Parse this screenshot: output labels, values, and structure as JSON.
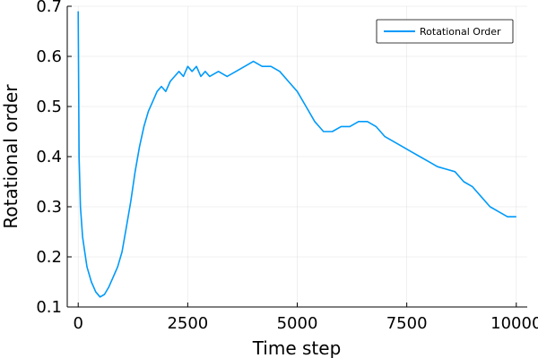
{
  "chart_data": {
    "type": "line",
    "title": "",
    "xlabel": "Time step",
    "ylabel": "Rotational order",
    "xlim": [
      -250,
      10250
    ],
    "ylim": [
      0.1,
      0.7
    ],
    "x_ticks": [
      0,
      2500,
      5000,
      7500,
      10000
    ],
    "x_tick_labels": [
      "0",
      "2500",
      "5000",
      "7500",
      "10000"
    ],
    "y_ticks": [
      0.1,
      0.2,
      0.3,
      0.4,
      0.5,
      0.6,
      0.7
    ],
    "y_tick_labels": [
      "0.1",
      "0.2",
      "0.3",
      "0.4",
      "0.5",
      "0.6",
      "0.7"
    ],
    "grid": true,
    "legend_position": "top-right",
    "series": [
      {
        "name": "Rotational Order",
        "color": "#009AFA",
        "x": [
          0,
          20,
          50,
          100,
          150,
          200,
          300,
          400,
          500,
          600,
          700,
          800,
          900,
          1000,
          1100,
          1200,
          1300,
          1400,
          1500,
          1600,
          1700,
          1800,
          1900,
          2000,
          2100,
          2200,
          2300,
          2400,
          2500,
          2600,
          2700,
          2800,
          2900,
          3000,
          3200,
          3400,
          3600,
          3800,
          4000,
          4200,
          4400,
          4600,
          4800,
          5000,
          5200,
          5400,
          5500,
          5600,
          5800,
          6000,
          6200,
          6400,
          6600,
          6800,
          7000,
          7200,
          7400,
          7600,
          7800,
          8000,
          8200,
          8400,
          8600,
          8800,
          9000,
          9200,
          9400,
          9600,
          9800,
          10000
        ],
        "y": [
          0.69,
          0.4,
          0.3,
          0.24,
          0.21,
          0.18,
          0.15,
          0.13,
          0.12,
          0.125,
          0.14,
          0.16,
          0.18,
          0.21,
          0.26,
          0.31,
          0.37,
          0.42,
          0.46,
          0.49,
          0.51,
          0.53,
          0.54,
          0.53,
          0.55,
          0.56,
          0.57,
          0.56,
          0.58,
          0.57,
          0.58,
          0.56,
          0.57,
          0.56,
          0.57,
          0.56,
          0.57,
          0.58,
          0.59,
          0.58,
          0.58,
          0.57,
          0.55,
          0.53,
          0.5,
          0.47,
          0.46,
          0.45,
          0.45,
          0.46,
          0.46,
          0.47,
          0.47,
          0.46,
          0.44,
          0.43,
          0.42,
          0.41,
          0.4,
          0.39,
          0.38,
          0.375,
          0.37,
          0.35,
          0.34,
          0.32,
          0.3,
          0.29,
          0.28,
          0.28
        ]
      }
    ]
  }
}
